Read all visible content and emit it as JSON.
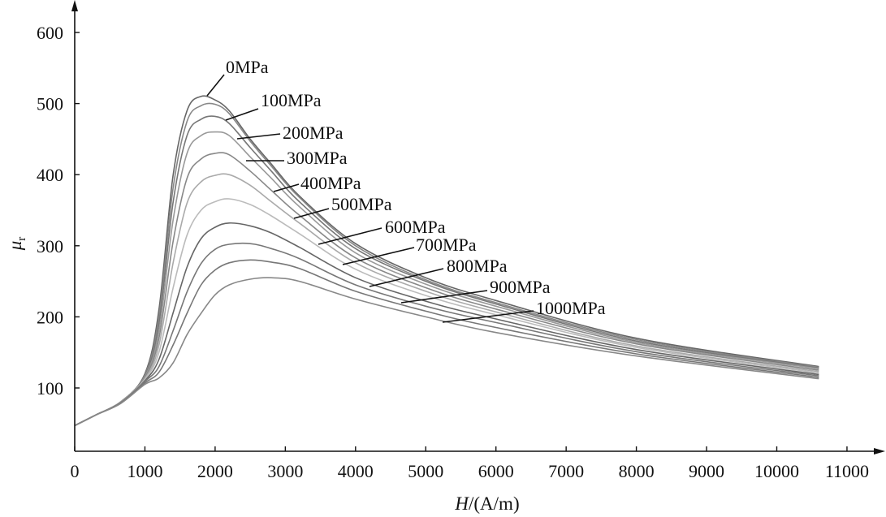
{
  "chart_data": {
    "type": "line",
    "title": "",
    "xlabel_italic": "H",
    "xlabel_rest": "/(A/m)",
    "ylabel_main": "μ",
    "ylabel_sub": "r",
    "xlim": [
      0,
      11400
    ],
    "ylim": [
      11,
      640
    ],
    "xticks": [
      0,
      1000,
      2000,
      3000,
      4000,
      5000,
      6000,
      7000,
      8000,
      9000,
      10000,
      11000
    ],
    "xtick_labels": [
      "0",
      "1000",
      "2000",
      "3000",
      "4000",
      "5000",
      "6000",
      "7000",
      "8000",
      "9000",
      "10000",
      "11000"
    ],
    "yticks": [
      100,
      200,
      300,
      400,
      500,
      600
    ],
    "ytick_labels": [
      "100",
      "200",
      "300",
      "400",
      "500",
      "600"
    ],
    "grid": false,
    "x": [
      0,
      300,
      650,
      1000,
      1200,
      1400,
      1600,
      1800,
      2000,
      2200,
      2500,
      2800,
      3200,
      4000,
      5000,
      6000,
      8000,
      10600
    ],
    "series": [
      {
        "name": "0MPa",
        "values": [
          47,
          62,
          80,
          120,
          210,
          398,
          490,
          510,
          505,
          490,
          450,
          415,
          370,
          303,
          255,
          223,
          170,
          130
        ]
      },
      {
        "name": "100MPa",
        "values": [
          47,
          62,
          80,
          118,
          200,
          380,
          475,
          497,
          499,
          486,
          447,
          412,
          368,
          300,
          252,
          220,
          168,
          129
        ]
      },
      {
        "name": "200MPa",
        "values": [
          47,
          62,
          80,
          117,
          190,
          360,
          455,
          478,
          482,
          472,
          438,
          405,
          362,
          296,
          250,
          218,
          166,
          128
        ]
      },
      {
        "name": "300MPa",
        "values": [
          47,
          62,
          80,
          116,
          180,
          335,
          430,
          455,
          460,
          455,
          425,
          395,
          355,
          290,
          246,
          215,
          164,
          127
        ]
      },
      {
        "name": "400MPa",
        "values": [
          47,
          62,
          80,
          115,
          170,
          305,
          395,
          422,
          430,
          428,
          405,
          378,
          343,
          283,
          241,
          211,
          162,
          125
        ]
      },
      {
        "name": "500MPa",
        "values": [
          47,
          62,
          80,
          113,
          160,
          275,
          360,
          390,
          399,
          400,
          385,
          362,
          332,
          276,
          236,
          207,
          159,
          123
        ]
      },
      {
        "name": "600MPa",
        "values": [
          47,
          62,
          79,
          112,
          150,
          240,
          315,
          350,
          362,
          366,
          358,
          342,
          317,
          267,
          230,
          203,
          157,
          121
        ]
      },
      {
        "name": "700MPa",
        "values": [
          47,
          62,
          79,
          110,
          140,
          205,
          270,
          310,
          326,
          332,
          328,
          318,
          298,
          255,
          222,
          197,
          154,
          119
        ]
      },
      {
        "name": "800MPa",
        "values": [
          47,
          62,
          79,
          109,
          130,
          180,
          235,
          275,
          295,
          302,
          303,
          296,
          282,
          245,
          215,
          192,
          151,
          117
        ]
      },
      {
        "name": "900MPa",
        "values": [
          47,
          62,
          78,
          107,
          122,
          160,
          205,
          245,
          266,
          276,
          280,
          277,
          268,
          236,
          208,
          185,
          148,
          115
        ]
      },
      {
        "name": "1000MPa",
        "values": [
          47,
          62,
          78,
          105,
          114,
          135,
          175,
          205,
          231,
          245,
          253,
          255,
          250,
          225,
          200,
          178,
          145,
          113
        ]
      }
    ],
    "series_colors": [
      "#666666",
      "#888888",
      "#777777",
      "#999999",
      "#888888",
      "#aaaaaa",
      "#bbbbbb",
      "#666666",
      "#777777",
      "#777777",
      "#888888"
    ]
  }
}
